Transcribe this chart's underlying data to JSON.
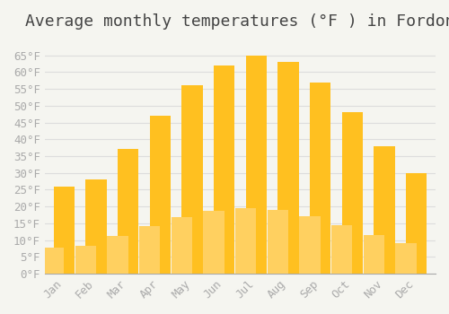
{
  "title": "Average monthly temperatures (°F ) in Fordon",
  "months": [
    "Jan",
    "Feb",
    "Mar",
    "Apr",
    "May",
    "Jun",
    "Jul",
    "Aug",
    "Sep",
    "Oct",
    "Nov",
    "Dec"
  ],
  "values": [
    26,
    28,
    37,
    47,
    56,
    62,
    65,
    63,
    57,
    48,
    38,
    30
  ],
  "bar_color_top": "#FFC020",
  "bar_color_bottom": "#FFD060",
  "background_color": "#F5F5F0",
  "grid_color": "#DDDDDD",
  "ylim": [
    0,
    70
  ],
  "yticks": [
    0,
    5,
    10,
    15,
    20,
    25,
    30,
    35,
    40,
    45,
    50,
    55,
    60,
    65
  ],
  "tick_label_color": "#AAAAAA",
  "title_color": "#444444",
  "title_fontsize": 13,
  "axis_fontsize": 9,
  "font_family": "monospace"
}
